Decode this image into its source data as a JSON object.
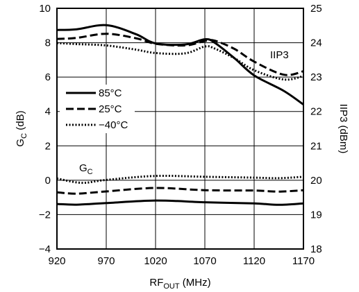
{
  "chart_data": {
    "type": "line",
    "xlabel": "RF",
    "xlabel_sub": "OUT",
    "xlabel_unit": " (MHz)",
    "ylabel_left": "G",
    "ylabel_left_sub": "C",
    "ylabel_left_unit": " (dB)",
    "ylabel_right": "IIP3 (dBm)",
    "xlim": [
      920,
      1170
    ],
    "ylim_left": [
      -4,
      10
    ],
    "ylim_right": [
      18,
      25
    ],
    "xticks": [
      "920",
      "970",
      "1020",
      "1070",
      "1120",
      "1170"
    ],
    "yticks_left": [
      "−4",
      "−2",
      "0",
      "2",
      "4",
      "6",
      "8",
      "10"
    ],
    "yticks_right": [
      "18",
      "19",
      "20",
      "21",
      "22",
      "23",
      "24",
      "25"
    ],
    "grid": true,
    "legend_position": "left-middle",
    "legend": [
      {
        "label": "85°C",
        "style": "solid"
      },
      {
        "label": "25°C",
        "style": "dashed"
      },
      {
        "label": "−40°C",
        "style": "dotted"
      }
    ],
    "annotations": {
      "iip3_label": "IIP3",
      "gc_label": "G",
      "gc_label_sub": "C"
    },
    "series": [
      {
        "group": "IIP3",
        "axis": "right",
        "style": "solid",
        "x": [
          920,
          940,
          970,
          1000,
          1020,
          1050,
          1070,
          1080,
          1100,
          1120,
          1150,
          1170
        ],
        "y": [
          24.37,
          24.39,
          24.51,
          24.25,
          23.98,
          23.95,
          24.1,
          24.0,
          23.55,
          23.05,
          22.6,
          22.2
        ]
      },
      {
        "group": "IIP3",
        "axis": "right",
        "style": "dashed",
        "x": [
          920,
          940,
          970,
          1000,
          1020,
          1050,
          1070,
          1080,
          1100,
          1120,
          1150,
          1170
        ],
        "y": [
          24.11,
          24.14,
          24.26,
          24.13,
          23.97,
          23.92,
          24.05,
          24.06,
          23.82,
          23.45,
          23.07,
          23.17
        ]
      },
      {
        "group": "IIP3",
        "axis": "right",
        "style": "dotted",
        "x": [
          920,
          940,
          970,
          1000,
          1020,
          1050,
          1070,
          1080,
          1100,
          1120,
          1150,
          1170
        ],
        "y": [
          23.99,
          23.96,
          23.92,
          23.8,
          23.7,
          23.69,
          23.89,
          23.83,
          23.55,
          23.2,
          22.93,
          23.03
        ]
      },
      {
        "group": "GC",
        "axis": "left",
        "style": "solid",
        "x": [
          920,
          940,
          970,
          1020,
          1070,
          1120,
          1145,
          1170
        ],
        "y": [
          -1.38,
          -1.42,
          -1.33,
          -1.18,
          -1.28,
          -1.35,
          -1.43,
          -1.35
        ]
      },
      {
        "group": "GC",
        "axis": "left",
        "style": "dashed",
        "x": [
          920,
          940,
          970,
          1020,
          1070,
          1120,
          1145,
          1170
        ],
        "y": [
          -0.7,
          -0.78,
          -0.65,
          -0.45,
          -0.58,
          -0.6,
          -0.66,
          -0.58
        ]
      },
      {
        "group": "GC",
        "axis": "left",
        "style": "dotted",
        "x": [
          920,
          945,
          970,
          1020,
          1070,
          1120,
          1145,
          1170
        ],
        "y": [
          0.1,
          -0.15,
          0.02,
          0.25,
          0.2,
          0.15,
          0.12,
          0.2
        ]
      }
    ]
  }
}
